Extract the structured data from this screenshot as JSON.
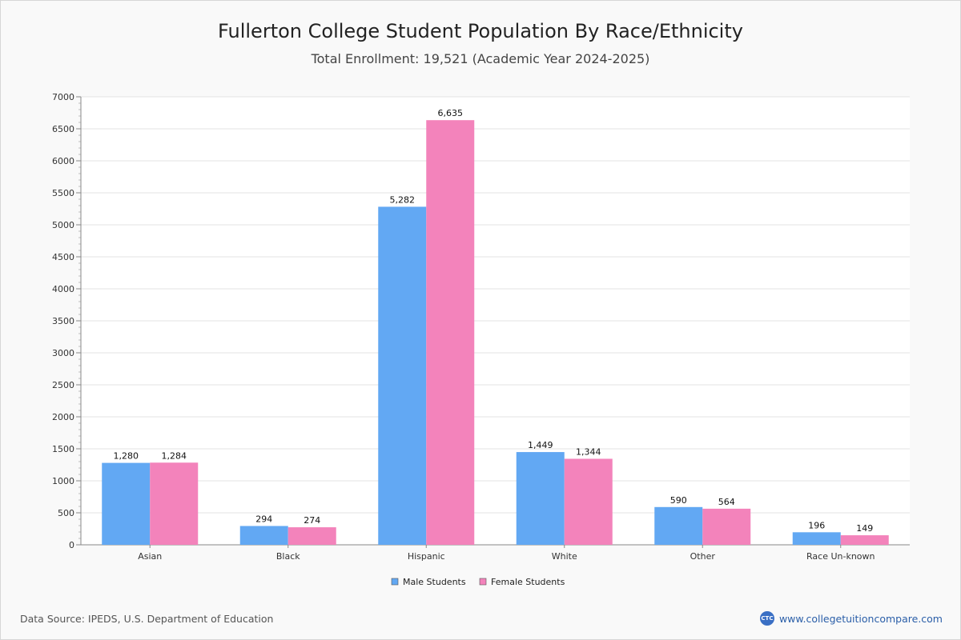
{
  "chart_data": {
    "type": "bar",
    "title": "Fullerton College Student Population By Race/Ethnicity",
    "subtitle": "Total Enrollment: 19,521 (Academic Year 2024-2025)",
    "categories": [
      "Asian",
      "Black",
      "Hispanic",
      "White",
      "Other",
      "Race Un-known"
    ],
    "series": [
      {
        "name": "Male Students",
        "color": "#62a8f3",
        "values": [
          1280,
          294,
          5282,
          1449,
          590,
          196
        ],
        "labels": [
          "1,280",
          "294",
          "5,282",
          "1,449",
          "590",
          "196"
        ]
      },
      {
        "name": "Female Students",
        "color": "#f383bb",
        "values": [
          1284,
          274,
          6635,
          1344,
          564,
          149
        ],
        "labels": [
          "1,284",
          "274",
          "6,635",
          "1,344",
          "564",
          "149"
        ]
      }
    ],
    "ylim": [
      0,
      7000
    ],
    "yticks": [
      0,
      500,
      1000,
      1500,
      2000,
      2500,
      3000,
      3500,
      4000,
      4500,
      5000,
      5500,
      6000,
      6500,
      7000
    ],
    "yminor_step": 100,
    "grid": true,
    "legend_position": "bottom-center"
  },
  "footer": {
    "source": "Data Source: IPEDS, U.S. Department of Education",
    "site": "www.collegetuitioncompare.com",
    "logo_text": "CTC"
  }
}
